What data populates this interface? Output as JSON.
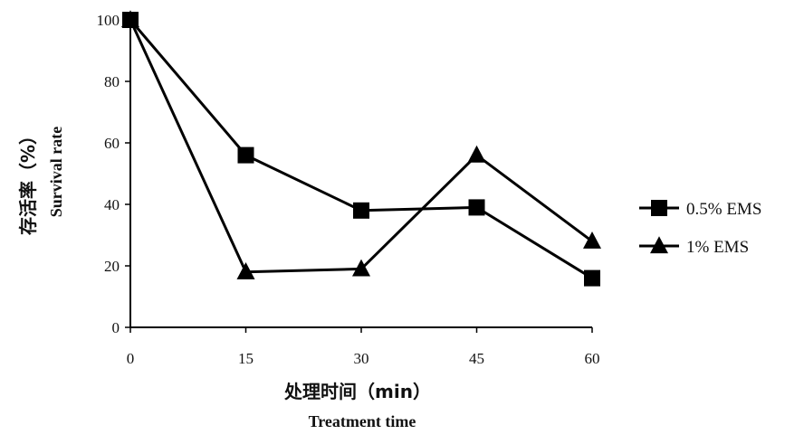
{
  "chart_data": {
    "type": "line",
    "title": "",
    "xlabel": "处理时间（min）",
    "xlabel_en": "Treatment time",
    "ylabel": "存活率（%）",
    "ylabel_en": "Survival rate",
    "x": [
      0,
      15,
      30,
      45,
      60
    ],
    "xticks": [
      "0",
      "15",
      "30",
      "45",
      "60"
    ],
    "xlim": [
      0,
      60
    ],
    "ylim": [
      0,
      100
    ],
    "yticks": [
      "0",
      "20",
      "40",
      "60",
      "80",
      "100"
    ],
    "grid": false,
    "legend_position": "right",
    "series": [
      {
        "name": "0.5% EMS",
        "marker": "square",
        "values": [
          100,
          56,
          38,
          39,
          16
        ]
      },
      {
        "name": "1% EMS",
        "marker": "triangle",
        "values": [
          100,
          18,
          19,
          56,
          28
        ]
      }
    ]
  }
}
